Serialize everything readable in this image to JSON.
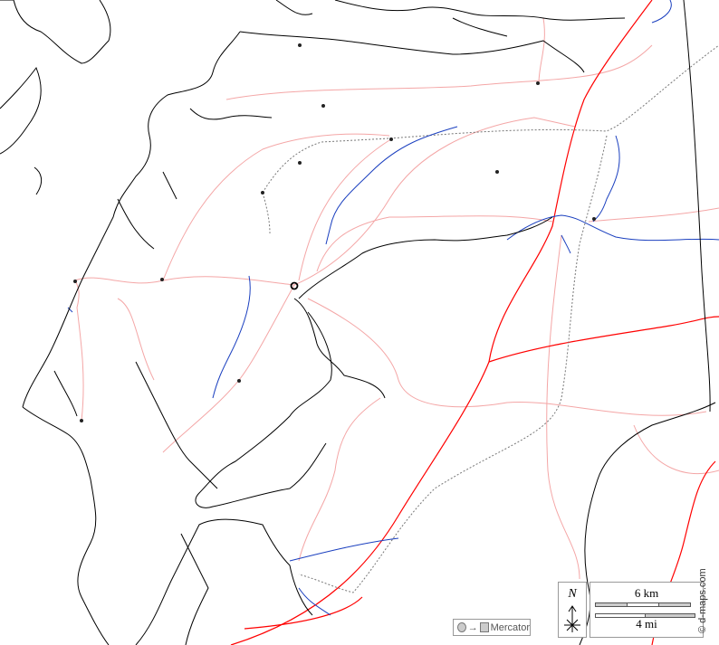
{
  "map": {
    "projection_label": "Mercator",
    "north_label": "N",
    "scale_km_label": "6 km",
    "scale_mi_label": "4 mi",
    "credit": "© d-maps.com",
    "colors": {
      "coast": "#000000",
      "river": "#1a3fbf",
      "main_road": "#ff0000",
      "minor_road": "#f4a6a6",
      "border": "#777777"
    },
    "icons": [
      "projection-icon",
      "north-arrow-icon",
      "town-dot-icon",
      "capital-circle-icon"
    ]
  }
}
